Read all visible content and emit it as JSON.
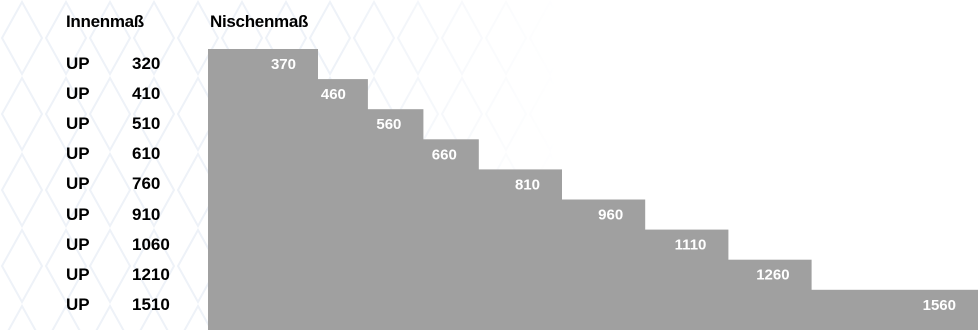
{
  "chart_data": {
    "type": "table",
    "headers": {
      "inner_label": "Innenmaß",
      "niche_label": "Nischenmaß"
    },
    "rows": [
      {
        "type": "UP",
        "inner": "320",
        "niche": "370"
      },
      {
        "type": "UP",
        "inner": "410",
        "niche": "460"
      },
      {
        "type": "UP",
        "inner": "510",
        "niche": "560"
      },
      {
        "type": "UP",
        "inner": "610",
        "niche": "660"
      },
      {
        "type": "UP",
        "inner": "760",
        "niche": "810"
      },
      {
        "type": "UP",
        "inner": "910",
        "niche": "960"
      },
      {
        "type": "UP",
        "inner": "1060",
        "niche": "1110"
      },
      {
        "type": "UP",
        "inner": "1210",
        "niche": "1260"
      },
      {
        "type": "UP",
        "inner": "1510",
        "niche": "1560"
      }
    ]
  },
  "colors": {
    "bar": "#a0a0a0",
    "bar_text": "#ffffff",
    "text": "#000000",
    "pattern": "#eef2f8"
  }
}
